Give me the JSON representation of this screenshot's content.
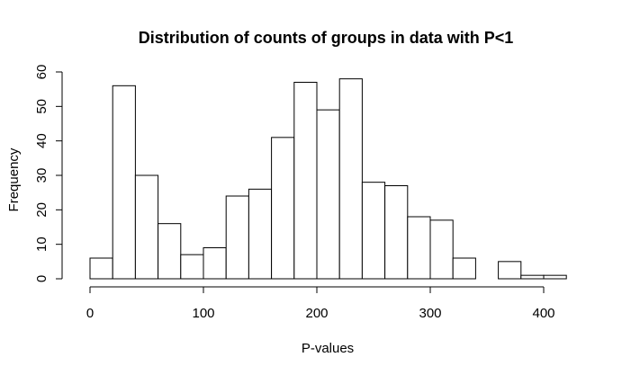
{
  "chart_data": {
    "type": "bar",
    "title": "Distribution of counts of groups in data with P<1",
    "xlabel": "P-values",
    "ylabel": "Frequency",
    "bin_edges": [
      0,
      20,
      40,
      60,
      80,
      100,
      120,
      140,
      160,
      180,
      200,
      220,
      240,
      260,
      280,
      300,
      320,
      340,
      360,
      380,
      400,
      420
    ],
    "values": [
      6,
      56,
      30,
      16,
      7,
      9,
      24,
      26,
      41,
      57,
      49,
      58,
      28,
      27,
      18,
      17,
      6,
      0,
      5,
      1,
      1
    ],
    "xlim": [
      0,
      420
    ],
    "ylim": [
      0,
      60
    ],
    "x_ticks": [
      0,
      100,
      200,
      300,
      400
    ],
    "y_ticks": [
      0,
      10,
      20,
      30,
      40,
      50,
      60
    ],
    "grid": false,
    "bar_fill": "#ffffff",
    "bar_stroke": "#000000"
  }
}
